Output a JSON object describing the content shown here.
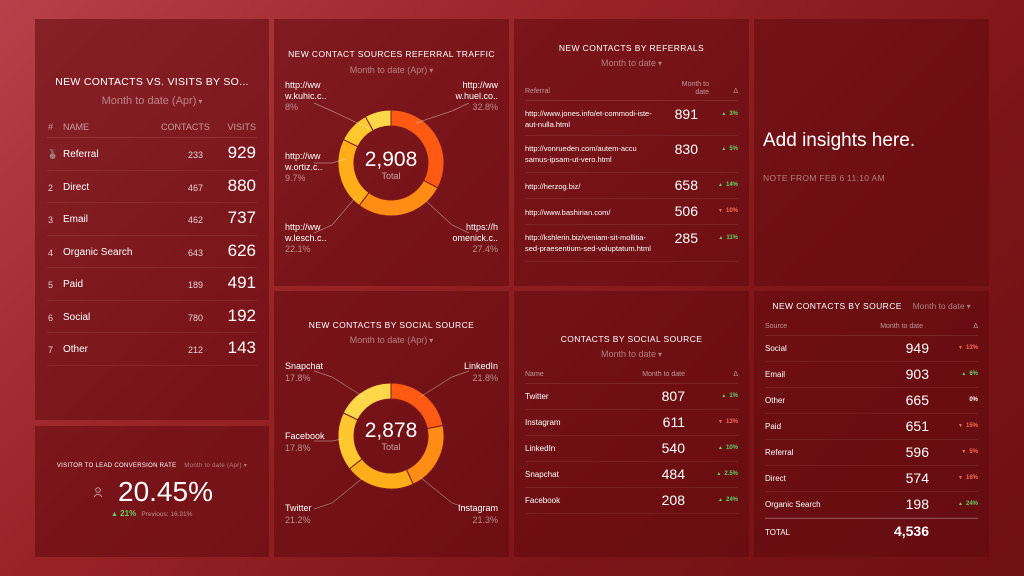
{
  "p1": {
    "title": "NEW CONTACTS VS. VISITS BY SO...",
    "subtitle": "Month to date (Apr)",
    "headers": [
      "#",
      "NAME",
      "CONTACTS",
      "VISITS"
    ],
    "rows": [
      {
        "rank": "1",
        "name": "Referral",
        "contacts": "233",
        "visits": "929"
      },
      {
        "rank": "2",
        "name": "Direct",
        "contacts": "467",
        "visits": "880"
      },
      {
        "rank": "3",
        "name": "Email",
        "contacts": "462",
        "visits": "737"
      },
      {
        "rank": "4",
        "name": "Organic Search",
        "contacts": "643",
        "visits": "626"
      },
      {
        "rank": "5",
        "name": "Paid",
        "contacts": "189",
        "visits": "491"
      },
      {
        "rank": "6",
        "name": "Social",
        "contacts": "780",
        "visits": "192"
      },
      {
        "rank": "7",
        "name": "Other",
        "contacts": "212",
        "visits": "143"
      }
    ]
  },
  "p2": {
    "title": "NEW CONTACT SOURCES REFERRAL TRAFFIC",
    "subtitle": "Month to date (Apr)",
    "total": "2,908",
    "total_label": "Total",
    "labels": [
      {
        "l1": "http://ww",
        "l2": "w.kuhic.c..",
        "pct": "8%"
      },
      {
        "l1": "http://ww",
        "l2": "w.huel.co..",
        "pct": "32.8%"
      },
      {
        "l1": "http://ww",
        "l2": "w.ortiz.c..",
        "pct": "9.7%"
      },
      {
        "l1": "https://h",
        "l2": "omenick.c..",
        "pct": "27.4%"
      },
      {
        "l1": "http://ww",
        "l2": "w.lesch.c..",
        "pct": "22.1%"
      }
    ],
    "slices": [
      32.8,
      27.4,
      22.1,
      9.7,
      8.0
    ],
    "colors": [
      "#ff5a14",
      "#ff8c14",
      "#ffae1a",
      "#ffc72e",
      "#ffd84a"
    ]
  },
  "p3": {
    "title": "NEW CONTACTS BY REFERRALS",
    "subtitle": "Month to date",
    "headers": [
      "Referral",
      "Month to date",
      "Δ"
    ],
    "rows": [
      {
        "ref1": "http://www.jones.info/et-commodi-iste-",
        "ref2": "aut-nulla.html",
        "value": "891",
        "delta": "3%",
        "dir": "up"
      },
      {
        "ref1": "http://vonrueden.com/autem-accu",
        "ref2": "samus-ipsam-ut-vero.html",
        "value": "830",
        "delta": "5%",
        "dir": "up"
      },
      {
        "ref1": "http://herzog.biz/",
        "ref2": "",
        "value": "658",
        "delta": "14%",
        "dir": "up"
      },
      {
        "ref1": "http://www.bashirian.com/",
        "ref2": "",
        "value": "506",
        "delta": "10%",
        "dir": "down"
      },
      {
        "ref1": "http://kshlerin.biz/veniam-sit-mollitia-",
        "ref2": "sed-praesentium-sed-voluptatum.html",
        "value": "285",
        "delta": "11%",
        "dir": "up"
      }
    ]
  },
  "p4": {
    "heading": "Add insights here.",
    "note": "NOTE FROM FEB 6 11:10 AM"
  },
  "p5": {
    "title": "VISITOR TO LEAD CONVERSION RATE",
    "period": "Month to date (Apr)",
    "value": "20.45%",
    "delta": "21%",
    "previous": "Previous: 16.91%"
  },
  "p6": {
    "title": "NEW CONTACTS BY SOCIAL SOURCE",
    "subtitle": "Month to date (Apr)",
    "total": "2,878",
    "total_label": "Total",
    "labels": [
      {
        "name": "Snapchat",
        "pct": "17.8%"
      },
      {
        "name": "LinkedIn",
        "pct": "21.8%"
      },
      {
        "name": "Facebook",
        "pct": "17.8%"
      },
      {
        "name": "Twitter",
        "pct": "21.2%"
      },
      {
        "name": "Instagram",
        "pct": "21.3%"
      }
    ],
    "slices": [
      21.8,
      21.3,
      21.2,
      17.8,
      17.8
    ],
    "colors": [
      "#ff5a14",
      "#ff8c14",
      "#ffae1a",
      "#ffc72e",
      "#ffd84a"
    ]
  },
  "p7": {
    "title": "CONTACTS BY SOCIAL SOURCE",
    "subtitle": "Month to date",
    "headers": [
      "Name",
      "Month to date",
      "Δ"
    ],
    "rows": [
      {
        "name": "Twitter",
        "value": "807",
        "delta": "1%",
        "dir": "up"
      },
      {
        "name": "Instagram",
        "value": "611",
        "delta": "13%",
        "dir": "down"
      },
      {
        "name": "LinkedIn",
        "value": "540",
        "delta": "10%",
        "dir": "up"
      },
      {
        "name": "Snapchat",
        "value": "484",
        "delta": "2.5%",
        "dir": "up"
      },
      {
        "name": "Facebook",
        "value": "208",
        "delta": "24%",
        "dir": "up"
      }
    ]
  },
  "p8": {
    "title": "NEW CONTACTS BY SOURCE",
    "subtitle": "Month to date",
    "headers": [
      "Source",
      "Month to date",
      "Δ"
    ],
    "rows": [
      {
        "name": "Social",
        "value": "949",
        "delta": "13%",
        "dir": "down"
      },
      {
        "name": "Email",
        "value": "903",
        "delta": "6%",
        "dir": "up"
      },
      {
        "name": "Other",
        "value": "665",
        "delta": "0%",
        "dir": "flat"
      },
      {
        "name": "Paid",
        "value": "651",
        "delta": "15%",
        "dir": "down"
      },
      {
        "name": "Referral",
        "value": "596",
        "delta": "5%",
        "dir": "down"
      },
      {
        "name": "Direct",
        "value": "574",
        "delta": "16%",
        "dir": "down"
      },
      {
        "name": "Organic Search",
        "value": "198",
        "delta": "24%",
        "dir": "up"
      }
    ],
    "total_label": "TOTAL",
    "total_value": "4,536"
  }
}
